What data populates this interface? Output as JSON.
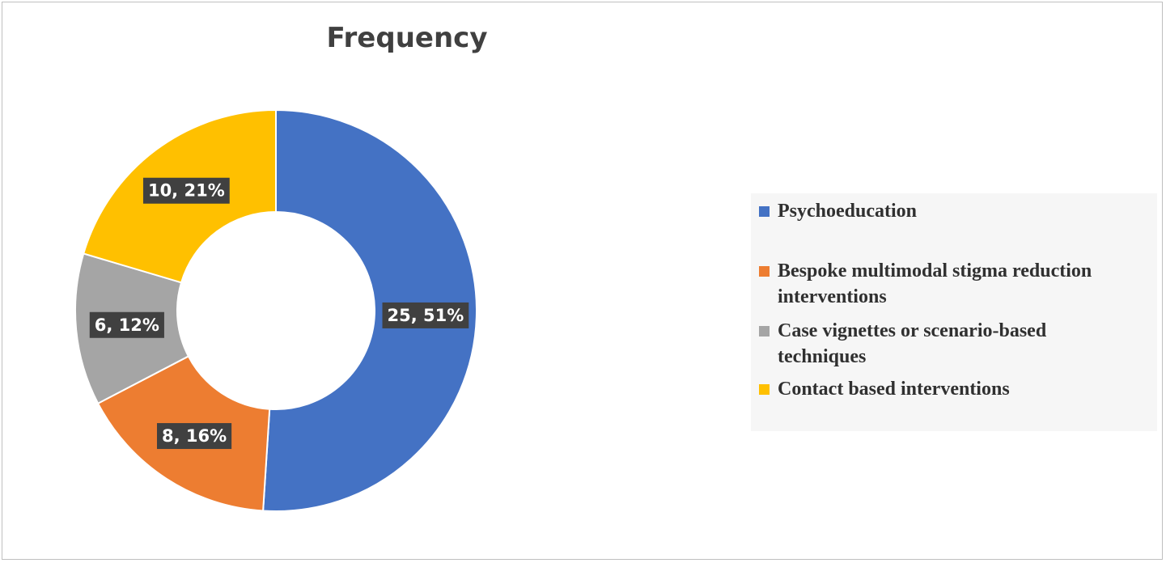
{
  "chart_data": {
    "type": "pie",
    "title": "Frequency",
    "donut": true,
    "categories": [
      "Psychoeducation",
      "Bespoke multimodal stigma reduction interventions",
      "Case vignettes or scenario-based techniques",
      "Contact based interventions"
    ],
    "values": [
      25,
      8,
      6,
      10
    ],
    "percents": [
      51,
      16,
      12,
      21
    ],
    "data_labels": [
      "25, 51%",
      "8, 16%",
      "6, 12%",
      "10, 21%"
    ],
    "colors": [
      "#4472C4",
      "#ED7D31",
      "#A5A5A5",
      "#FFC000"
    ],
    "legend_position": "right"
  },
  "legend": {
    "items": [
      {
        "line1": "Psychoeducation",
        "line2": ""
      },
      {
        "line1": "Bespoke multimodal stigma reduction",
        "line2": "interventions"
      },
      {
        "line1": "Case vignettes or scenario-based",
        "line2": "techniques"
      },
      {
        "line1": "Contact based interventions",
        "line2": ""
      }
    ]
  }
}
